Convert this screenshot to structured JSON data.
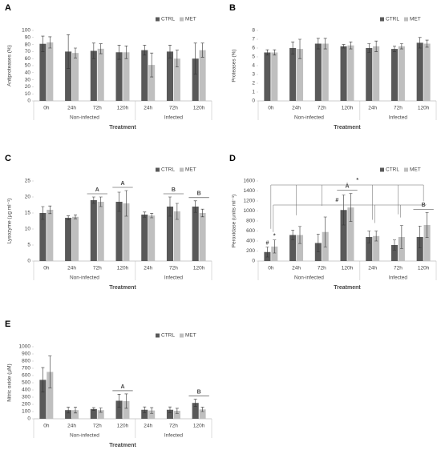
{
  "chart_data": [
    {
      "type": "bar",
      "panel": "A",
      "ylabel": "Antiproteases (%)",
      "xlabel": "Treatment",
      "categories": [
        "0h",
        "24h",
        "72h",
        "120h",
        "24h",
        "72h",
        "120h"
      ],
      "groups": [
        "Non-infected",
        "Infected"
      ],
      "ylim": [
        0,
        100
      ],
      "yticks": [
        0,
        10,
        20,
        30,
        40,
        50,
        60,
        70,
        80,
        90,
        100
      ],
      "grid": false,
      "legend": "top-right",
      "series": [
        {
          "name": "CTRL",
          "color": "#595959",
          "values": [
            81,
            70,
            71,
            69,
            72,
            70,
            60
          ],
          "errors": [
            11,
            24,
            11,
            10,
            7,
            9,
            22
          ]
        },
        {
          "name": "MET",
          "color": "#bfbfbf",
          "values": [
            83,
            68,
            74,
            69,
            51,
            60,
            72
          ],
          "errors": [
            8,
            7,
            7,
            9,
            17,
            12,
            10
          ]
        }
      ],
      "annotations": []
    },
    {
      "type": "bar",
      "panel": "B",
      "ylabel": "Proteases (%)",
      "xlabel": "Treatment",
      "categories": [
        "0h",
        "24h",
        "72h",
        "120h",
        "24h",
        "72h",
        "120h"
      ],
      "groups": [
        "Non-infected",
        "Infected"
      ],
      "ylim": [
        0,
        8
      ],
      "yticks": [
        0,
        1,
        2,
        3,
        4,
        5,
        6,
        7,
        8
      ],
      "grid": false,
      "legend": "top-right",
      "series": [
        {
          "name": "CTRL",
          "color": "#595959",
          "values": [
            5.5,
            6.0,
            6.5,
            6.2,
            6.0,
            5.9,
            6.6
          ],
          "errors": [
            0.3,
            0.7,
            0.6,
            0.2,
            0.5,
            0.3,
            0.6
          ]
        },
        {
          "name": "MET",
          "color": "#bfbfbf",
          "values": [
            5.5,
            5.9,
            6.5,
            6.3,
            6.2,
            6.2,
            6.5
          ],
          "errors": [
            0.3,
            1.1,
            0.6,
            0.4,
            0.6,
            0.3,
            0.4
          ]
        }
      ],
      "annotations": []
    },
    {
      "type": "bar",
      "panel": "C",
      "ylabel": "Lysozyme (µg ml⁻¹)",
      "xlabel": "Treatment",
      "categories": [
        "0h",
        "24h",
        "72h",
        "120h",
        "24h",
        "72h",
        "120h"
      ],
      "groups": [
        "Non-infected",
        "Infected"
      ],
      "ylim": [
        0,
        25
      ],
      "yticks": [
        0,
        5,
        10,
        15,
        20,
        25
      ],
      "grid": false,
      "legend": "top-right",
      "series": [
        {
          "name": "CTRL",
          "color": "#595959",
          "values": [
            15,
            13.5,
            19,
            18.5,
            14.5,
            17,
            17
          ],
          "errors": [
            2,
            0.6,
            1,
            3,
            0.8,
            3,
            1.8
          ]
        },
        {
          "name": "MET",
          "color": "#bfbfbf",
          "values": [
            16,
            13.8,
            18.5,
            18,
            14.2,
            15.5,
            15
          ],
          "errors": [
            1.2,
            0.6,
            1.5,
            4,
            0.7,
            2.5,
            1.2
          ]
        }
      ],
      "annotations": [
        "A",
        "A",
        "B",
        "B"
      ]
    },
    {
      "type": "bar",
      "panel": "D",
      "ylabel": "Peroxidase (units ml⁻¹)",
      "xlabel": "Treatment",
      "categories": [
        "0h",
        "24h",
        "72h",
        "120h",
        "24h",
        "72h",
        "120h"
      ],
      "groups": [
        "Non-infected",
        "Infected"
      ],
      "ylim": [
        0,
        1600
      ],
      "yticks": [
        0,
        200,
        400,
        600,
        800,
        1000,
        1200,
        1400,
        1600
      ],
      "grid": false,
      "legend": "top-right",
      "series": [
        {
          "name": "CTRL",
          "color": "#595959",
          "values": [
            180,
            520,
            360,
            1020,
            480,
            320,
            480
          ],
          "errors": [
            100,
            100,
            180,
            300,
            120,
            100,
            220
          ]
        },
        {
          "name": "MET",
          "color": "#bfbfbf",
          "values": [
            290,
            520,
            580,
            1070,
            500,
            480,
            720
          ],
          "errors": [
            130,
            170,
            300,
            280,
            100,
            230,
            250
          ]
        }
      ],
      "annotations": [
        "#",
        "*",
        "A",
        "B",
        "*",
        "#"
      ]
    },
    {
      "type": "bar",
      "panel": "E",
      "ylabel": "Nitric oxide (µM)",
      "xlabel": "Treatment",
      "categories": [
        "0h",
        "24h",
        "72h",
        "120h",
        "24h",
        "72h",
        "120h"
      ],
      "groups": [
        "Non-infected",
        "Infected"
      ],
      "ylim": [
        0,
        1000
      ],
      "yticks": [
        0,
        100,
        200,
        300,
        400,
        500,
        600,
        700,
        800,
        900,
        1000
      ],
      "grid": false,
      "legend": "top-right",
      "series": [
        {
          "name": "CTRL",
          "color": "#595959",
          "values": [
            540,
            120,
            135,
            250,
            125,
            125,
            220
          ],
          "errors": [
            170,
            40,
            20,
            90,
            40,
            40,
            50
          ]
        },
        {
          "name": "MET",
          "color": "#bfbfbf",
          "values": [
            650,
            120,
            120,
            245,
            115,
            110,
            130
          ],
          "errors": [
            220,
            40,
            30,
            100,
            40,
            35,
            30
          ]
        }
      ],
      "annotations": [
        "A",
        "B"
      ]
    }
  ]
}
